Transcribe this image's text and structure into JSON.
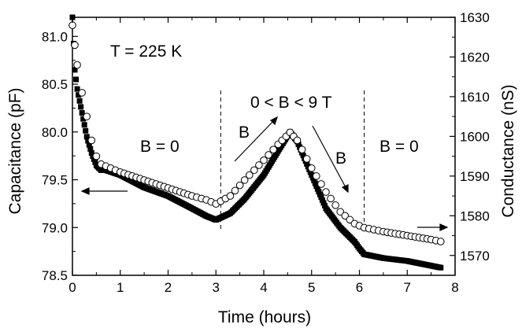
{
  "chart_data": {
    "type": "scatter",
    "title": "",
    "xlabel": "Time (hours)",
    "ylabel": "Capacitance (pF)",
    "y2label": "Conductance (nS)",
    "xlim": [
      0,
      8
    ],
    "ylim": [
      78.5,
      81.2
    ],
    "y2lim": [
      1565,
      1630
    ],
    "xticks": [
      0,
      1,
      2,
      3,
      4,
      5,
      6,
      7,
      8
    ],
    "yticks": [
      78.5,
      79.0,
      79.5,
      80.0,
      80.5,
      81.0
    ],
    "yticks_labels": [
      "78.5",
      "79.0",
      "79.5",
      "80.0",
      "80.5",
      "81.0"
    ],
    "y2ticks": [
      1570,
      1580,
      1590,
      1600,
      1610,
      1620,
      1630
    ],
    "grid": false,
    "legend": "none",
    "series": [
      {
        "axis": "left",
        "marker": "filled-square",
        "color": "#000000",
        "points": [
          [
            0.0,
            81.2
          ],
          [
            0.05,
            80.65
          ],
          [
            0.1,
            80.45
          ],
          [
            0.2,
            80.2
          ],
          [
            0.3,
            79.95
          ],
          [
            0.4,
            79.78
          ],
          [
            0.5,
            79.65
          ],
          [
            0.6,
            79.6
          ],
          [
            0.7,
            79.6
          ],
          [
            1.0,
            79.55
          ],
          [
            1.5,
            79.42
          ],
          [
            2.0,
            79.33
          ],
          [
            2.5,
            79.2
          ],
          [
            2.8,
            79.12
          ],
          [
            3.0,
            79.08
          ],
          [
            3.3,
            79.15
          ],
          [
            3.6,
            79.3
          ],
          [
            4.0,
            79.55
          ],
          [
            4.3,
            79.8
          ],
          [
            4.55,
            80.0
          ],
          [
            4.7,
            79.9
          ],
          [
            5.0,
            79.55
          ],
          [
            5.3,
            79.2
          ],
          [
            5.6,
            79.0
          ],
          [
            5.9,
            78.85
          ],
          [
            6.0,
            78.78
          ],
          [
            6.1,
            78.72
          ],
          [
            6.5,
            78.68
          ],
          [
            7.0,
            78.65
          ],
          [
            7.5,
            78.6
          ],
          [
            7.7,
            78.58
          ]
        ]
      },
      {
        "axis": "right",
        "marker": "open-circle",
        "color": "#000000",
        "points": [
          [
            0.0,
            1628
          ],
          [
            0.05,
            1623
          ],
          [
            0.1,
            1618
          ],
          [
            0.2,
            1611
          ],
          [
            0.3,
            1605
          ],
          [
            0.4,
            1599
          ],
          [
            0.5,
            1595
          ],
          [
            0.6,
            1593
          ],
          [
            0.8,
            1592
          ],
          [
            1.0,
            1591
          ],
          [
            1.5,
            1589
          ],
          [
            2.0,
            1587
          ],
          [
            2.5,
            1585
          ],
          [
            2.8,
            1584
          ],
          [
            3.0,
            1583
          ],
          [
            3.3,
            1585
          ],
          [
            3.6,
            1589
          ],
          [
            4.0,
            1594
          ],
          [
            4.3,
            1598
          ],
          [
            4.55,
            1601
          ],
          [
            4.7,
            1599
          ],
          [
            5.0,
            1592
          ],
          [
            5.3,
            1586
          ],
          [
            5.6,
            1581
          ],
          [
            5.9,
            1578
          ],
          [
            6.1,
            1577
          ],
          [
            6.5,
            1576
          ],
          [
            7.0,
            1575
          ],
          [
            7.5,
            1574
          ],
          [
            7.7,
            1573.5
          ]
        ]
      }
    ],
    "annotations": {
      "temperature": "T = 225 K",
      "b_zero_left": "B = 0",
      "b_ramp_up": "B",
      "b_range": "0 < B < 9 T",
      "b_ramp_down": "B",
      "b_zero_right": "B = 0"
    },
    "vlines": [
      3.1,
      6.1
    ]
  }
}
